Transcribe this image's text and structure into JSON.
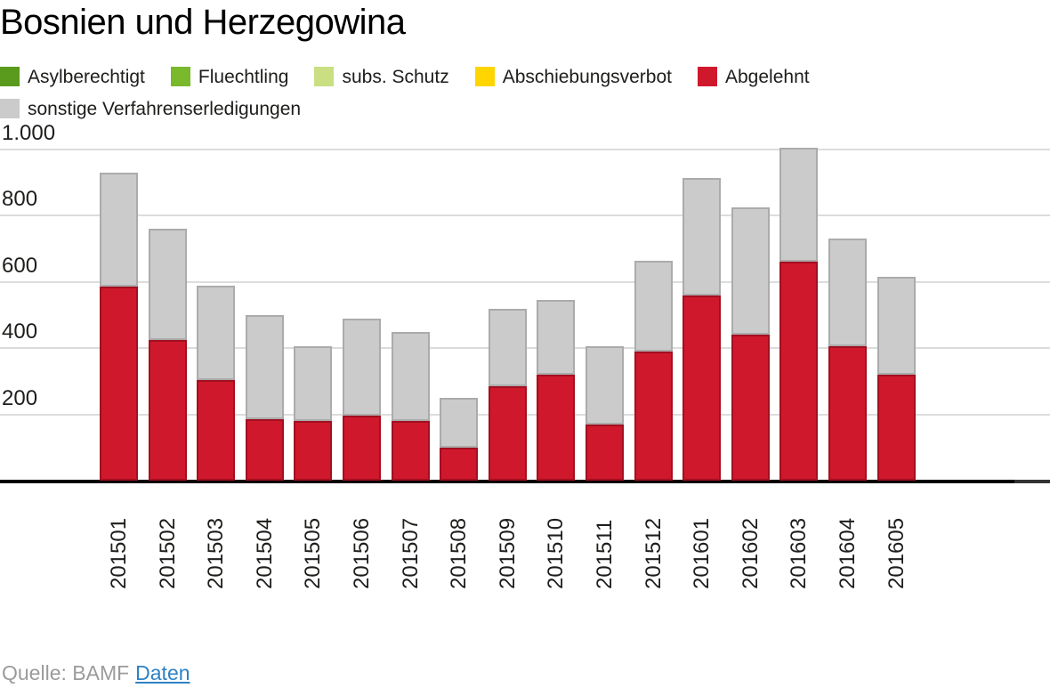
{
  "title": "Bosnien und Herzegowina",
  "legend": {
    "rows": [
      [
        {
          "label": "Asylberechtigt",
          "color": "#5a9b1e"
        },
        {
          "label": "Fluechtling",
          "color": "#7ab82c"
        },
        {
          "label": "subs. Schutz",
          "color": "#c9df82"
        },
        {
          "label": "Abschiebungsverbot",
          "color": "#ffd500"
        },
        {
          "label": "Abgelehnt",
          "color": "#d0182c"
        }
      ],
      [
        {
          "label": "sonstige Verfahrenserledigungen",
          "color": "#cbcbcb"
        }
      ]
    ]
  },
  "chart_data": {
    "type": "bar",
    "stacked": true,
    "title": "Bosnien und Herzegowina",
    "categories": [
      "201501",
      "201502",
      "201503",
      "201504",
      "201505",
      "201506",
      "201507",
      "201508",
      "201509",
      "201510",
      "201511",
      "201512",
      "201601",
      "201602",
      "201603",
      "201604",
      "201605"
    ],
    "series": [
      {
        "name": "Asylberechtigt",
        "color": "#5a9b1e",
        "border": "#4c8418",
        "values": [
          0,
          0,
          0,
          0,
          0,
          0,
          0,
          0,
          0,
          0,
          0,
          0,
          0,
          0,
          0,
          0,
          0
        ]
      },
      {
        "name": "Fluechtling",
        "color": "#7ab82c",
        "border": "#699f24",
        "values": [
          0,
          0,
          0,
          0,
          0,
          0,
          0,
          0,
          0,
          0,
          0,
          0,
          0,
          0,
          0,
          0,
          0
        ]
      },
      {
        "name": "subs. Schutz",
        "color": "#c9df82",
        "border": "#b3cc66",
        "values": [
          0,
          0,
          0,
          0,
          0,
          0,
          0,
          0,
          0,
          0,
          0,
          0,
          0,
          0,
          0,
          0,
          0
        ]
      },
      {
        "name": "Abschiebungsverbot",
        "color": "#ffd500",
        "border": "#e0bb00",
        "values": [
          0,
          0,
          0,
          0,
          0,
          0,
          0,
          0,
          0,
          0,
          0,
          0,
          0,
          0,
          0,
          0,
          0
        ]
      },
      {
        "name": "Abgelehnt",
        "color": "#d0182c",
        "border": "#a30f20",
        "values": [
          585,
          425,
          305,
          185,
          180,
          195,
          180,
          100,
          285,
          320,
          170,
          390,
          560,
          440,
          660,
          405,
          320
        ]
      },
      {
        "name": "sonstige Verfahrenserledigungen",
        "color": "#cbcbcb",
        "border": "#ababab",
        "values": [
          345,
          335,
          285,
          315,
          225,
          295,
          270,
          150,
          235,
          225,
          235,
          275,
          355,
          385,
          345,
          325,
          295
        ]
      }
    ],
    "ylim": [
      0,
      1000
    ],
    "yticks": [
      {
        "value": 1000,
        "label": "1.000"
      },
      {
        "value": 800,
        "label": "800"
      },
      {
        "value": 600,
        "label": "600"
      },
      {
        "value": 400,
        "label": "400"
      },
      {
        "value": 200,
        "label": "200"
      }
    ],
    "grid": true,
    "legend_position": "top",
    "xlabel": "",
    "ylabel": ""
  },
  "footer": {
    "source_label": "Quelle: BAMF",
    "link_label": "Daten"
  },
  "colors": {
    "axis_line": "#000000",
    "gridline": "#dcdcdc",
    "text": "#1d1d1b",
    "source_text": "#9b9b9b",
    "link": "#2e82c4"
  }
}
